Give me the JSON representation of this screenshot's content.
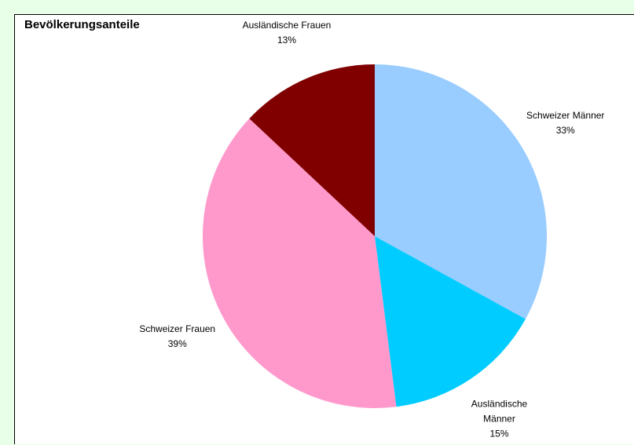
{
  "chart_data": {
    "type": "pie",
    "title": "Bevölkerungsanteile",
    "categories": [
      "Schweizer Männer",
      "Ausländische Männer",
      "Schweizer Frauen",
      "Ausländische Frauen"
    ],
    "values": [
      33,
      15,
      39,
      13
    ],
    "value_labels": [
      "33%",
      "15%",
      "39%",
      "13%"
    ],
    "colors": [
      "#99ccff",
      "#00ccff",
      "#ff99cc",
      "#800000"
    ]
  }
}
